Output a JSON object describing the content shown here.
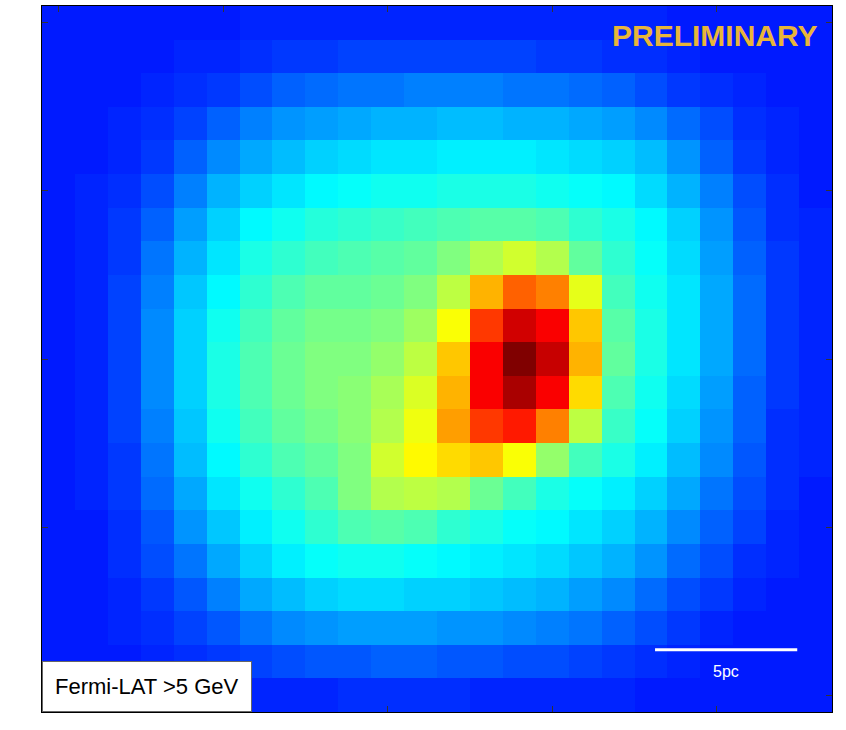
{
  "chart_data": {
    "type": "heatmap",
    "annotations": {
      "watermark": "PRELIMINARY",
      "label": "Fermi-LAT >5 GeV",
      "scale_bar": "5pc"
    },
    "color": "jet",
    "color_range": [
      0,
      100
    ],
    "tick_labels": false,
    "cells": [
      [
        15,
        15,
        15,
        15,
        15,
        15,
        16,
        16,
        16,
        16,
        16,
        16,
        16,
        16,
        16,
        16,
        16,
        16,
        16,
        15,
        15,
        15,
        15,
        15
      ],
      [
        15,
        15,
        15,
        15,
        16,
        16,
        17,
        18,
        18,
        19,
        19,
        19,
        19,
        19,
        19,
        18,
        18,
        17,
        17,
        16,
        15,
        15,
        15,
        15
      ],
      [
        15,
        15,
        15,
        16,
        17,
        18,
        20,
        22,
        23,
        24,
        24,
        25,
        25,
        25,
        24,
        24,
        23,
        22,
        20,
        18,
        17,
        16,
        15,
        15
      ],
      [
        15,
        15,
        16,
        17,
        19,
        22,
        25,
        27,
        28,
        29,
        30,
        30,
        31,
        31,
        30,
        30,
        29,
        28,
        26,
        23,
        20,
        17,
        16,
        15
      ],
      [
        15,
        15,
        16,
        18,
        22,
        26,
        29,
        31,
        33,
        34,
        35,
        35,
        36,
        36,
        36,
        35,
        34,
        33,
        31,
        27,
        22,
        18,
        16,
        15
      ],
      [
        15,
        16,
        17,
        20,
        25,
        30,
        33,
        35,
        37,
        38,
        39,
        39,
        40,
        40,
        40,
        39,
        38,
        37,
        34,
        30,
        25,
        20,
        17,
        15
      ],
      [
        15,
        16,
        18,
        22,
        28,
        33,
        37,
        39,
        41,
        42,
        43,
        44,
        45,
        46,
        46,
        45,
        42,
        40,
        37,
        33,
        27,
        21,
        17,
        16
      ],
      [
        15,
        16,
        18,
        24,
        30,
        35,
        40,
        42,
        44,
        45,
        46,
        47,
        50,
        55,
        58,
        55,
        47,
        42,
        38,
        34,
        28,
        22,
        18,
        16
      ],
      [
        15,
        16,
        19,
        25,
        32,
        37,
        42,
        45,
        47,
        47,
        48,
        50,
        56,
        70,
        78,
        75,
        60,
        44,
        39,
        35,
        29,
        23,
        18,
        16
      ],
      [
        15,
        16,
        19,
        26,
        33,
        39,
        44,
        47,
        49,
        49,
        50,
        53,
        62,
        82,
        92,
        88,
        68,
        46,
        40,
        35,
        29,
        23,
        18,
        16
      ],
      [
        15,
        16,
        19,
        26,
        33,
        40,
        45,
        48,
        50,
        50,
        52,
        56,
        68,
        88,
        100,
        93,
        70,
        47,
        40,
        35,
        29,
        23,
        18,
        16
      ],
      [
        15,
        16,
        19,
        26,
        33,
        40,
        45,
        48,
        50,
        51,
        54,
        59,
        70,
        88,
        96,
        88,
        66,
        45,
        39,
        34,
        28,
        22,
        18,
        16
      ],
      [
        15,
        16,
        19,
        25,
        32,
        39,
        44,
        47,
        49,
        51,
        55,
        61,
        72,
        82,
        85,
        75,
        56,
        43,
        38,
        33,
        27,
        22,
        17,
        16
      ],
      [
        15,
        16,
        18,
        24,
        31,
        37,
        42,
        45,
        47,
        50,
        58,
        63,
        66,
        68,
        62,
        52,
        44,
        40,
        36,
        31,
        26,
        21,
        17,
        16
      ],
      [
        15,
        16,
        18,
        23,
        29,
        35,
        39,
        42,
        45,
        50,
        55,
        56,
        55,
        48,
        44,
        40,
        38,
        36,
        33,
        29,
        24,
        20,
        17,
        15
      ],
      [
        15,
        15,
        17,
        21,
        27,
        32,
        36,
        39,
        42,
        45,
        46,
        45,
        42,
        40,
        38,
        37,
        35,
        33,
        30,
        26,
        22,
        19,
        16,
        15
      ],
      [
        15,
        15,
        17,
        20,
        24,
        29,
        33,
        36,
        38,
        39,
        39,
        38,
        37,
        36,
        35,
        34,
        32,
        30,
        27,
        23,
        20,
        17,
        16,
        15
      ],
      [
        15,
        15,
        16,
        18,
        21,
        25,
        29,
        31,
        33,
        34,
        34,
        33,
        33,
        32,
        31,
        30,
        28,
        26,
        23,
        20,
        18,
        16,
        15,
        15
      ],
      [
        15,
        15,
        16,
        17,
        19,
        21,
        24,
        26,
        27,
        28,
        28,
        28,
        27,
        27,
        26,
        25,
        24,
        22,
        20,
        18,
        16,
        15,
        15,
        15
      ],
      [
        15,
        15,
        15,
        16,
        17,
        18,
        19,
        20,
        21,
        21,
        22,
        22,
        21,
        21,
        20,
        20,
        19,
        18,
        17,
        16,
        15,
        15,
        15,
        15
      ],
      [
        15,
        15,
        15,
        15,
        15,
        16,
        16,
        16,
        16,
        17,
        17,
        17,
        17,
        16,
        16,
        16,
        16,
        16,
        15,
        15,
        15,
        15,
        15,
        15
      ]
    ]
  }
}
